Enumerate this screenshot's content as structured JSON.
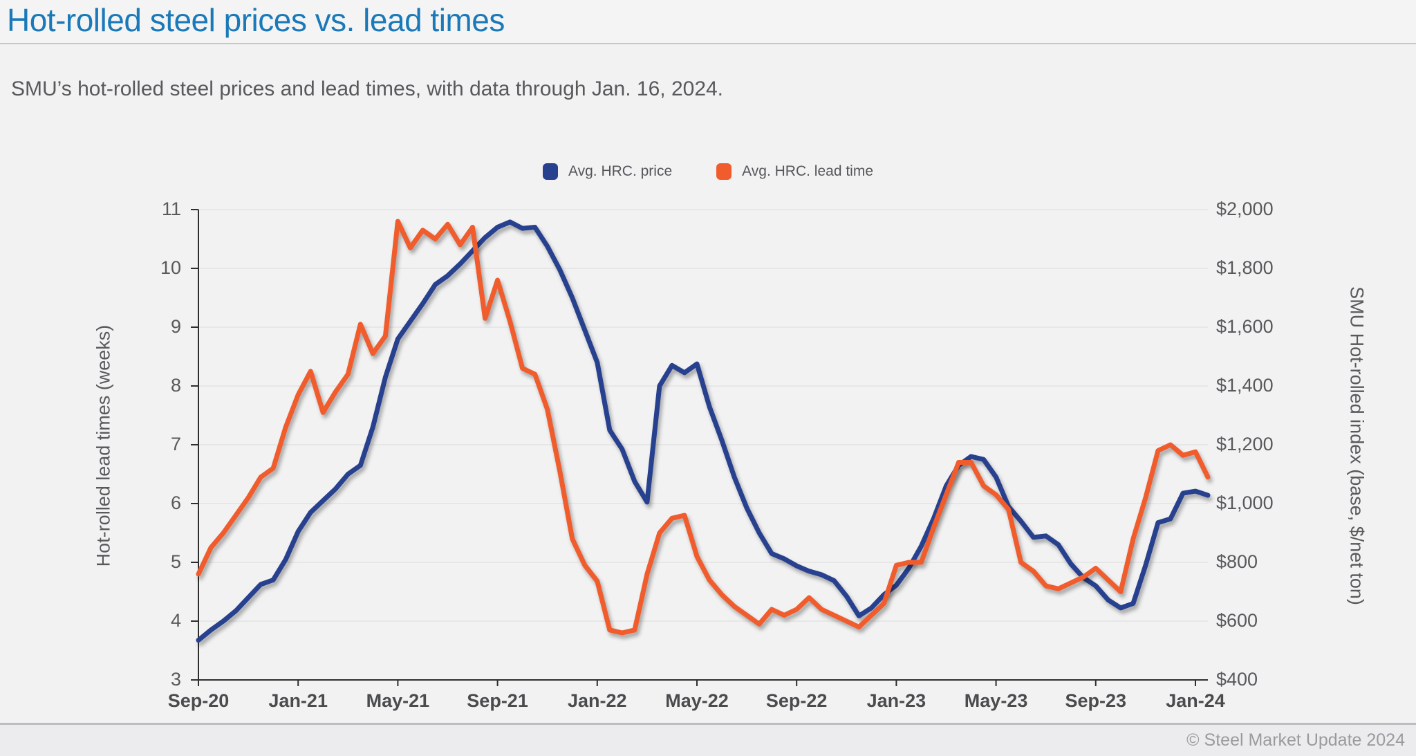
{
  "header": {
    "title": "Hot-rolled steel prices vs. lead times"
  },
  "subtitle": "SMU’s hot-rolled steel prices and lead times, with data through Jan. 16, 2024.",
  "footer": {
    "copyright": "© Steel Market Update 2024"
  },
  "chart_data": {
    "type": "line",
    "x_unit": "months since Sep-2020 (points sampled every 0.5 month, weekly survey data)",
    "x_end_month": 40.5,
    "x_tick_months": [
      0,
      4,
      8,
      12,
      16,
      20,
      24,
      28,
      32,
      36,
      40
    ],
    "x_tick_labels": [
      "Sep-20",
      "Jan-21",
      "May-21",
      "Sep-21",
      "Jan-22",
      "May-22",
      "Sep-22",
      "Jan-23",
      "May-23",
      "Sep-23",
      "Jan-24"
    ],
    "left_axis": {
      "title": "Hot-rolled lead times (weeks)",
      "min": 3,
      "max": 11,
      "tick_step": 1,
      "tick_labels": [
        "3",
        "4",
        "5",
        "6",
        "7",
        "8",
        "9",
        "10",
        "11"
      ]
    },
    "right_axis": {
      "title": "SMU Hot-rolled index (base, $/net ton)",
      "min": 400,
      "max": 2000,
      "tick_step": 200,
      "tick_labels": [
        "$400",
        "$600",
        "$800",
        "$1,000",
        "$1,200",
        "$1,400",
        "$1,600",
        "$1,800",
        "$2,000"
      ]
    },
    "grid": "horizontal",
    "legend_position": "top-center",
    "series": [
      {
        "name": "Avg. HRC. price",
        "axis": "right",
        "color": "#28418f",
        "values": [
          535,
          570,
          600,
          635,
          680,
          725,
          740,
          810,
          905,
          970,
          1010,
          1050,
          1100,
          1130,
          1260,
          1430,
          1560,
          1620,
          1680,
          1745,
          1775,
          1815,
          1860,
          1905,
          1940,
          1958,
          1936,
          1940,
          1875,
          1795,
          1700,
          1590,
          1480,
          1250,
          1185,
          1075,
          1005,
          1400,
          1470,
          1445,
          1475,
          1330,
          1215,
          1090,
          985,
          900,
          830,
          812,
          788,
          770,
          758,
          738,
          685,
          618,
          645,
          690,
          722,
          780,
          855,
          950,
          1060,
          1130,
          1160,
          1150,
          1090,
          990,
          940,
          885,
          890,
          860,
          795,
          748,
          720,
          672,
          645,
          660,
          790,
          935,
          948,
          1035,
          1042,
          1028
        ]
      },
      {
        "name": "Avg. HRC. lead time",
        "axis": "left",
        "color": "#f15c2c",
        "values": [
          4.8,
          5.25,
          5.5,
          5.8,
          6.1,
          6.45,
          6.6,
          7.3,
          7.85,
          8.25,
          7.55,
          7.9,
          8.2,
          9.05,
          8.55,
          8.85,
          10.8,
          10.35,
          10.65,
          10.5,
          10.75,
          10.4,
          10.7,
          9.15,
          9.8,
          9.1,
          8.3,
          8.2,
          7.6,
          6.55,
          5.4,
          4.95,
          4.68,
          3.85,
          3.8,
          3.85,
          4.8,
          5.5,
          5.75,
          5.8,
          5.1,
          4.7,
          4.45,
          4.25,
          4.1,
          3.95,
          4.2,
          4.1,
          4.2,
          4.4,
          4.2,
          4.1,
          4.0,
          3.9,
          4.1,
          4.3,
          4.95,
          5.0,
          5.0,
          5.6,
          6.15,
          6.7,
          6.7,
          6.3,
          6.15,
          5.9,
          5.0,
          4.85,
          4.6,
          4.55,
          4.65,
          4.75,
          4.9,
          4.7,
          4.5,
          5.4,
          6.1,
          6.9,
          7.0,
          6.82,
          6.88,
          6.45
        ]
      }
    ]
  }
}
